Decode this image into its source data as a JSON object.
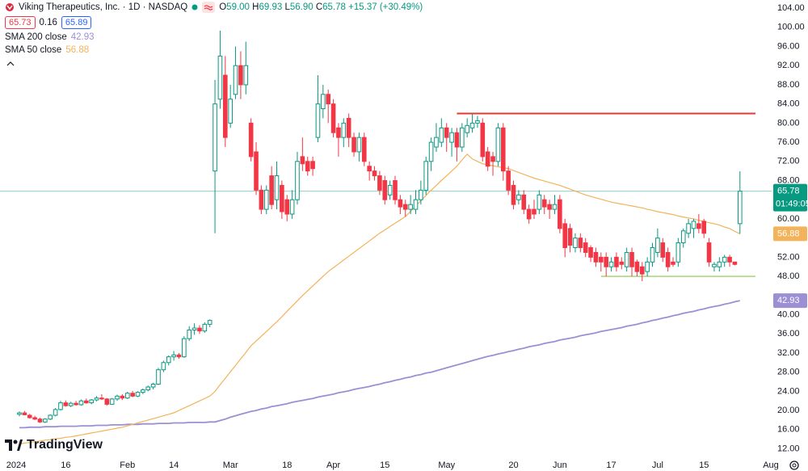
{
  "header": {
    "symbol": "Viking Therapeutics, Inc. · 1D · NASDAQ",
    "ohlc": [
      {
        "key": "O",
        "value": "59.00"
      },
      {
        "key": "H",
        "value": "69.93"
      },
      {
        "key": "L",
        "value": "56.90"
      },
      {
        "key": "C",
        "value": "65.78"
      }
    ],
    "change": "+15.37 (+30.49%)",
    "bid": "65.73",
    "spread": "0.16",
    "ask": "65.89"
  },
  "watermark": "TradingView",
  "chart_data": {
    "type": "candlestick",
    "categories": [
      "2024",
      null,
      null,
      null,
      null,
      null,
      null,
      null,
      null,
      "16",
      null,
      null,
      null,
      null,
      null,
      null,
      null,
      null,
      null,
      null,
      null,
      "Feb",
      null,
      null,
      null,
      null,
      null,
      null,
      null,
      null,
      "14",
      null,
      null,
      null,
      null,
      null,
      null,
      null,
      null,
      null,
      null,
      "Mar",
      null,
      null,
      null,
      null,
      null,
      null,
      null,
      null,
      null,
      null,
      "18",
      null,
      null,
      null,
      null,
      null,
      null,
      null,
      null,
      "Apr",
      null,
      null,
      null,
      null,
      null,
      null,
      null,
      null,
      null,
      "15",
      null,
      null,
      null,
      null,
      null,
      null,
      null,
      null,
      null,
      null,
      null,
      "May",
      null,
      null,
      null,
      null,
      null,
      null,
      null,
      null,
      null,
      null,
      null,
      null,
      "20",
      null,
      null,
      null,
      null,
      null,
      null,
      null,
      null,
      "Jun",
      null,
      null,
      null,
      null,
      null,
      null,
      null,
      null,
      null,
      "17",
      null,
      null,
      null,
      null,
      null,
      null,
      null,
      null,
      "Jul",
      null,
      null,
      null,
      null,
      null,
      null,
      null,
      null,
      "15",
      null,
      null,
      null,
      null,
      null,
      null,
      null,
      null,
      null,
      null,
      null,
      null,
      "Aug"
    ],
    "open": [
      19.2,
      19.5,
      19.0,
      18.5,
      18.2,
      17.6,
      18.2,
      19.0,
      20.2,
      21.6,
      21.0,
      21.5,
      21.2,
      22.0,
      21.6,
      22.2,
      22.6,
      22.4,
      21.3,
      22.4,
      23.0,
      22.6,
      23.6,
      23.0,
      23.8,
      24.3,
      24.9,
      25.5,
      28.5,
      30.0,
      31.2,
      31.6,
      31.2,
      35.0,
      36.8,
      37.2,
      36.6,
      38.0,
      70,
      85,
      90,
      80,
      86,
      92,
      88,
      80,
      74,
      66,
      62,
      69,
      64,
      67,
      64,
      61,
      64,
      73,
      72,
      72,
      77,
      83,
      86,
      84,
      79,
      77,
      81,
      77,
      74,
      77,
      71,
      70,
      69,
      68,
      65,
      68,
      64,
      63,
      62,
      62,
      64,
      66,
      72,
      75,
      76,
      79,
      76,
      78,
      75,
      78,
      79,
      80,
      80,
      74,
      73,
      72,
      79,
      70,
      67,
      64,
      65,
      62,
      62,
      62,
      64,
      63,
      62,
      64,
      59,
      58,
      54,
      56,
      55,
      54,
      53,
      52,
      52,
      50,
      52,
      51,
      50,
      53,
      51,
      50,
      49,
      51,
      53,
      55,
      53,
      51,
      51,
      55,
      57,
      58,
      59,
      59.5,
      55,
      50,
      50,
      51,
      52,
      51,
      59,
      null,
      null,
      null,
      null,
      null,
      null
    ],
    "high": [
      19.8,
      19.9,
      19.3,
      18.9,
      18.5,
      18.4,
      19.2,
      20.5,
      22.0,
      22.1,
      21.8,
      22.0,
      22.3,
      22.5,
      22.4,
      23.0,
      23.4,
      22.6,
      22.6,
      23.3,
      23.4,
      23.9,
      24.1,
      24.0,
      24.6,
      25.2,
      25.8,
      28.9,
      30.4,
      31.5,
      32.4,
      32.0,
      35.5,
      37.6,
      38.2,
      37.8,
      38.4,
      39.0,
      89,
      99.3,
      94,
      88,
      96,
      95,
      97,
      81,
      76,
      67,
      67,
      71,
      72,
      68,
      65,
      66,
      74,
      77,
      73,
      73,
      90,
      88,
      87,
      85,
      80,
      81,
      82,
      78,
      78,
      78,
      72,
      71,
      70,
      69,
      68,
      69,
      65,
      64,
      65,
      66,
      68,
      73,
      77,
      80,
      81,
      80,
      79,
      79,
      80,
      81,
      82,
      81.5,
      81,
      75,
      74,
      80,
      80,
      71,
      68,
      66,
      66,
      63,
      64,
      66,
      65,
      64,
      65,
      65,
      60,
      59,
      57,
      57,
      56,
      54.5,
      54,
      53,
      53,
      52,
      53,
      52,
      54,
      54,
      51.5,
      51,
      52,
      55,
      58,
      56,
      54,
      52,
      56,
      58,
      60,
      60,
      61,
      60,
      56,
      51,
      52,
      52.5,
      52.5,
      51,
      69.93,
      null,
      null,
      null,
      null,
      null,
      null
    ],
    "low": [
      18.8,
      19.0,
      18.3,
      18.0,
      17.4,
      17.4,
      18.0,
      18.8,
      20.0,
      20.8,
      20.7,
      21.0,
      21.0,
      21.4,
      21.3,
      21.9,
      22.2,
      21.0,
      21.2,
      22.0,
      22.2,
      22.4,
      22.8,
      22.8,
      23.4,
      24.0,
      24.4,
      25.3,
      28.0,
      29.4,
      30.4,
      30.8,
      31.0,
      34.5,
      35.8,
      36.0,
      36.2,
      37.4,
      57,
      83,
      75,
      79,
      85,
      85,
      86,
      72,
      65,
      61,
      61,
      62,
      62,
      60,
      59.5,
      60,
      63,
      70,
      69,
      69,
      76,
      81,
      80,
      77,
      73,
      75,
      75,
      73,
      72,
      71,
      68,
      68,
      65,
      63,
      64,
      63,
      61,
      60.5,
      61,
      61,
      63,
      65,
      70,
      74,
      75,
      74,
      73,
      72,
      74,
      77,
      78,
      79,
      72,
      70,
      69,
      71,
      68,
      65,
      62,
      63,
      61,
      59,
      60,
      61,
      61,
      60,
      61,
      57,
      52,
      53,
      53,
      53,
      52,
      51,
      50,
      49,
      48,
      49,
      49,
      49.5,
      49,
      48,
      48,
      47,
      48,
      50,
      52,
      51,
      49,
      50,
      50,
      54,
      56,
      56,
      57,
      56,
      50,
      49,
      49,
      50,
      50,
      50.3,
      56.9,
      null,
      null,
      null,
      null,
      null,
      null
    ],
    "close": [
      19.5,
      19.1,
      18.5,
      18.2,
      17.6,
      18.2,
      19.0,
      20.2,
      21.6,
      21.0,
      21.5,
      21.2,
      22.0,
      21.6,
      22.2,
      22.6,
      22.4,
      21.3,
      22.4,
      23.0,
      22.6,
      23.6,
      23.0,
      23.8,
      24.3,
      24.9,
      25.5,
      28.5,
      30.0,
      31.2,
      31.6,
      31.2,
      35.0,
      36.8,
      37.2,
      36.6,
      38.0,
      38.8,
      84,
      94,
      77,
      85,
      92,
      88,
      92,
      73,
      66,
      62,
      66,
      63,
      69,
      61.5,
      61,
      64,
      72,
      71.5,
      70,
      70.5,
      84,
      86,
      84,
      78,
      77,
      80,
      77,
      74,
      77,
      72,
      70,
      69,
      66,
      64,
      67,
      64,
      62.5,
      62,
      63,
      64,
      66,
      72,
      76,
      77,
      79,
      77,
      78,
      75,
      79,
      79.5,
      80,
      80.5,
      73,
      71,
      72,
      79,
      70,
      66,
      63,
      65,
      62,
      60,
      61,
      65,
      62.5,
      62,
      63,
      58,
      54,
      54.5,
      56,
      54,
      53,
      52,
      51,
      51,
      50,
      51,
      50,
      50.5,
      53,
      50,
      49,
      48.5,
      51,
      54,
      56,
      52,
      50,
      50.5,
      55,
      57.5,
      59,
      59.5,
      58,
      57,
      51,
      50.5,
      51,
      52,
      51,
      50.5,
      65.78,
      null,
      null,
      null,
      null,
      null,
      null
    ],
    "up_color": "#089981",
    "down_color": "#f23645",
    "series": [
      {
        "name": "SMA 200 close",
        "color": "#9c8fd4",
        "values": [
          16.4,
          16.4,
          16.5,
          16.5,
          16.5,
          16.6,
          16.6,
          16.6,
          16.7,
          16.7,
          16.7,
          16.7,
          16.8,
          16.8,
          16.8,
          16.9,
          16.9,
          16.9,
          17.0,
          17.0,
          17.0,
          17.1,
          17.1,
          17.1,
          17.2,
          17.2,
          17.2,
          17.3,
          17.3,
          17.3,
          17.4,
          17.4,
          17.4,
          17.5,
          17.5,
          17.5,
          17.5,
          17.6,
          17.6,
          17.9,
          18.2,
          18.6,
          18.9,
          19.2,
          19.5,
          19.8,
          20.0,
          20.3,
          20.5,
          20.8,
          21.0,
          21.2,
          21.4,
          21.7,
          21.9,
          22.1,
          22.3,
          22.5,
          22.8,
          23.0,
          23.2,
          23.4,
          23.7,
          23.9,
          24.1,
          24.4,
          24.6,
          24.8,
          25.0,
          25.3,
          25.5,
          25.8,
          26.0,
          26.3,
          26.5,
          26.8,
          27.0,
          27.3,
          27.5,
          27.8,
          28.0,
          28.3,
          28.6,
          28.9,
          29.2,
          29.5,
          29.8,
          30.1,
          30.4,
          30.7,
          31.0,
          31.3,
          31.5,
          31.8,
          32.0,
          32.3,
          32.5,
          32.8,
          33.0,
          33.3,
          33.5,
          33.7,
          34.0,
          34.2,
          34.4,
          34.7,
          34.9,
          35.1,
          35.3,
          35.6,
          35.8,
          36.0,
          36.2,
          36.5,
          36.7,
          36.9,
          37.1,
          37.3,
          37.6,
          37.8,
          38.0,
          38.3,
          38.5,
          38.8,
          39.0,
          39.3,
          39.5,
          39.8,
          40.0,
          40.3,
          40.5,
          40.7,
          41.0,
          41.2,
          41.5,
          41.7,
          41.9,
          42.2,
          42.4,
          42.7,
          42.93,
          null,
          null,
          null,
          null,
          null,
          null
        ]
      },
      {
        "name": "SMA 50 close",
        "color": "#f2b35b",
        "values": [
          13.0,
          13.2,
          13.3,
          13.5,
          13.6,
          13.8,
          13.9,
          14.1,
          14.2,
          14.4,
          14.5,
          14.7,
          14.9,
          15.1,
          15.3,
          15.5,
          15.7,
          15.9,
          16.1,
          16.3,
          16.5,
          16.8,
          17.1,
          17.4,
          17.7,
          18.0,
          18.3,
          18.6,
          18.9,
          19.2,
          19.5,
          20.0,
          20.5,
          21.0,
          21.5,
          22.0,
          22.5,
          23.0,
          24.0,
          25.4,
          26.7,
          28.1,
          29.4,
          30.8,
          32.1,
          33.5,
          34.5,
          35.5,
          36.5,
          37.5,
          38.5,
          39.6,
          40.7,
          41.8,
          42.9,
          44.0,
          45.0,
          46.0,
          47.0,
          48.0,
          49.0,
          49.8,
          50.6,
          51.4,
          52.2,
          53.0,
          53.8,
          54.6,
          55.4,
          56.2,
          57.0,
          57.7,
          58.4,
          59.1,
          59.8,
          60.5,
          61.6,
          62.7,
          63.8,
          64.9,
          66.0,
          67.0,
          68.0,
          69.0,
          70.0,
          71.0,
          72.3,
          73.5,
          72.5,
          72.0,
          71.5,
          71.3,
          71.1,
          70.9,
          70.7,
          70.5,
          70.1,
          69.7,
          69.3,
          68.9,
          68.5,
          68.2,
          67.9,
          67.6,
          67.3,
          67.0,
          66.6,
          66.2,
          65.8,
          65.4,
          65.0,
          64.7,
          64.4,
          64.1,
          63.8,
          63.5,
          63.3,
          63.1,
          62.9,
          62.7,
          62.5,
          62.3,
          62.0,
          61.8,
          61.5,
          61.3,
          61.1,
          60.9,
          60.6,
          60.4,
          60.2,
          60.0,
          59.7,
          59.5,
          59.2,
          59.0,
          58.7,
          58.3,
          58.0,
          57.4,
          56.88,
          null,
          null,
          null,
          null,
          null,
          null
        ]
      }
    ],
    "hlines": [
      {
        "value": 82,
        "color": "#e53935"
      },
      {
        "value": 48,
        "color": "#8bc34a"
      }
    ],
    "countdown": "01:49:05",
    "ylim": [
      10.4,
      105.7
    ],
    "yticks": [
      {
        "value": 12,
        "label": "12.00"
      },
      {
        "value": 16,
        "label": "16.00"
      },
      {
        "value": 20,
        "label": "20.00"
      },
      {
        "value": 24,
        "label": "24.00"
      },
      {
        "value": 28,
        "label": "28.00"
      },
      {
        "value": 32,
        "label": "32.00"
      },
      {
        "value": 36,
        "label": "36.00"
      },
      {
        "value": 40,
        "label": "40.00"
      },
      {
        "value": 48,
        "label": "48.00"
      },
      {
        "value": 52,
        "label": "52.00"
      },
      {
        "value": 60,
        "label": "60.00"
      },
      {
        "value": 68,
        "label": "68.00"
      },
      {
        "value": 72,
        "label": "72.00"
      },
      {
        "value": 76,
        "label": "76.00"
      },
      {
        "value": 80,
        "label": "80.00"
      },
      {
        "value": 84,
        "label": "84.00"
      },
      {
        "value": 88,
        "label": "88.00"
      },
      {
        "value": 92,
        "label": "92.00"
      },
      {
        "value": 96,
        "label": "96.00"
      },
      {
        "value": 100,
        "label": "100.00"
      },
      {
        "value": 104,
        "label": "104.00"
      }
    ],
    "grid": false
  }
}
